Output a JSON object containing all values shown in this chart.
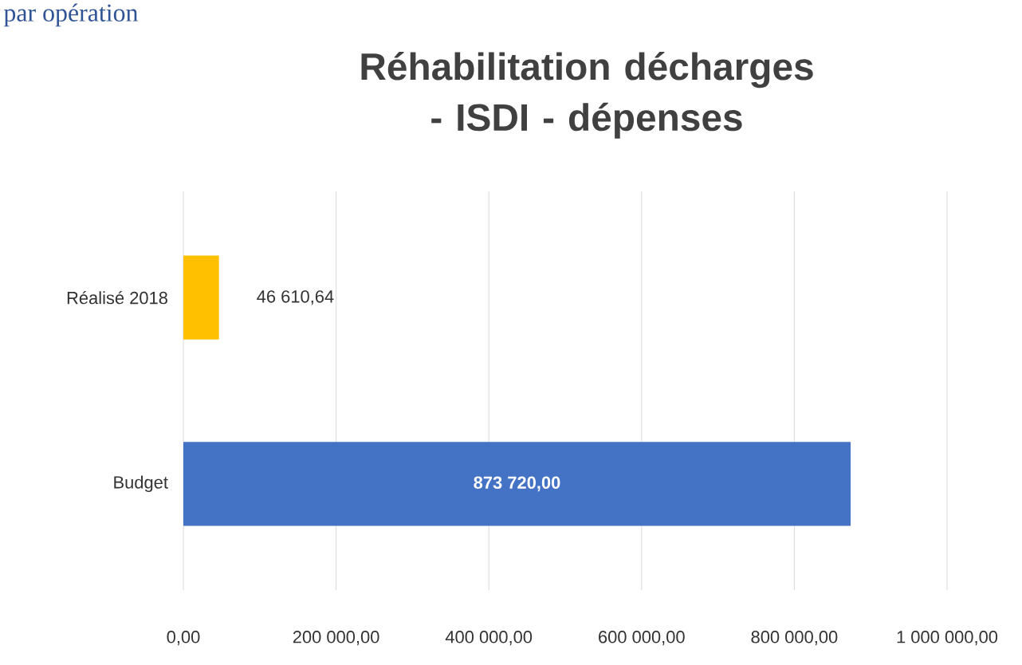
{
  "chart_data": {
    "type": "bar",
    "orientation": "horizontal",
    "title": "Réhabilitation décharges - ISDI - dépenses",
    "annotations": [
      "par opération"
    ],
    "categories": [
      "Réalisé 2018",
      "Budget"
    ],
    "values": [
      46610.64,
      873720.0
    ],
    "colors": [
      "#ffc000",
      "#4472c4"
    ],
    "value_labels": [
      "46 610,64",
      "873 720,00"
    ],
    "xlim": [
      0,
      1000000
    ],
    "xticks": [
      {
        "value": 0,
        "label": "0,00"
      },
      {
        "value": 200000,
        "label": "200 000,00"
      },
      {
        "value": 400000,
        "label": "400 000,00"
      },
      {
        "value": 600000,
        "label": "600 000,00"
      },
      {
        "value": 800000,
        "label": "800 000,00"
      },
      {
        "value": 1000000,
        "label": "1 000 000,00"
      }
    ],
    "grid": "x"
  }
}
